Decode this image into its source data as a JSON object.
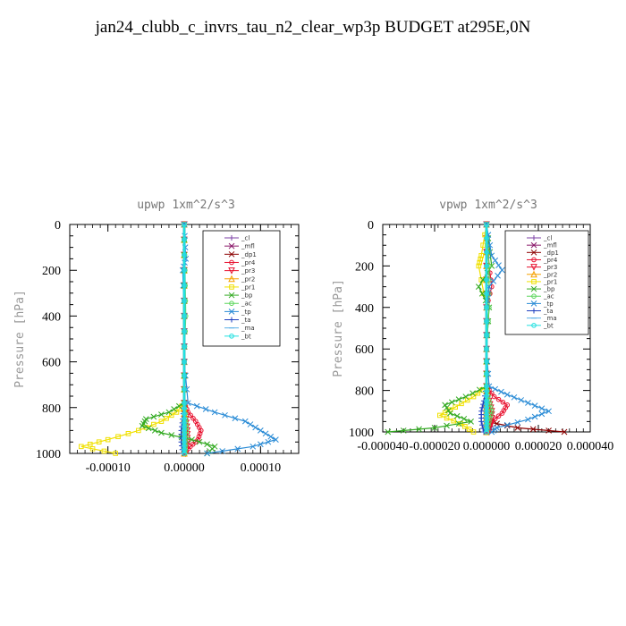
{
  "page_title": "jan24_clubb_c_invrs_tau_n2_clear_wp3p  BUDGET at295E,0N",
  "chart_data": [
    {
      "type": "line",
      "title": "upwp   1xm^2/s^3",
      "ylabel": "Pressure [hPa]",
      "xlabel": "",
      "xlim": [
        -0.00015,
        0.00015
      ],
      "ylim": [
        1000,
        0
      ],
      "x_ticks": [
        "-0.00010",
        "0.00000",
        "0.00010"
      ],
      "x_tick_values": [
        -0.0001,
        0,
        0.0001
      ],
      "y_ticks": [
        "0",
        "200",
        "400",
        "600",
        "800",
        "1000"
      ],
      "legend_position": "top-right",
      "series": [
        {
          "name": "_cl",
          "color": "#7b3fa6",
          "marker": "+",
          "pressure": [
            0,
            200,
            400,
            600,
            780,
            850,
            900,
            950,
            1000
          ],
          "values": [
            0,
            0,
            0,
            0,
            0,
            0,
            0,
            0,
            0
          ]
        },
        {
          "name": "_mfl",
          "color": "#8b1a6b",
          "marker": "x",
          "pressure": [
            0,
            200,
            400,
            600,
            780,
            850,
            900,
            950,
            1000
          ],
          "values": [
            0,
            0,
            0,
            0,
            0,
            0,
            0,
            0,
            0
          ]
        },
        {
          "name": "_dp1",
          "color": "#8b0000",
          "marker": "*",
          "pressure": [
            0,
            200,
            400,
            600,
            780,
            850,
            900,
            950,
            1000
          ],
          "values": [
            0,
            0,
            0,
            0,
            0,
            0,
            0,
            0,
            0
          ]
        },
        {
          "name": "_pr4",
          "color": "#e8102e",
          "marker": "o",
          "pressure": [
            0,
            200,
            400,
            600,
            780,
            820,
            860,
            900,
            940,
            970,
            1000
          ],
          "values": [
            0,
            0,
            0,
            0,
            0,
            5e-06,
            1.5e-05,
            2.2e-05,
            1.8e-05,
            8e-06,
            0
          ]
        },
        {
          "name": "_pr3",
          "color": "#e8102e",
          "marker": "v",
          "pressure": [
            0,
            200,
            400,
            600,
            780,
            850,
            900,
            950,
            1000
          ],
          "values": [
            0,
            0,
            0,
            0,
            0,
            2e-06,
            4e-06,
            4e-06,
            2e-06
          ]
        },
        {
          "name": "_pr2",
          "color": "#f5a000",
          "marker": "^",
          "pressure": [
            0,
            200,
            400,
            600,
            780,
            850,
            900,
            950,
            1000
          ],
          "values": [
            0,
            0,
            0,
            0,
            0,
            0,
            0,
            0,
            0
          ]
        },
        {
          "name": "_pr1",
          "color": "#f0e000",
          "marker": "s",
          "pressure": [
            0,
            200,
            400,
            600,
            780,
            820,
            860,
            900,
            940,
            970,
            1000
          ],
          "values": [
            0,
            0,
            0,
            0,
            0,
            -1e-05,
            -3e-05,
            -6e-05,
            -0.0001,
            -0.000135,
            -9e-05
          ]
        },
        {
          "name": "_bp",
          "color": "#33aa22",
          "marker": "x",
          "pressure": [
            0,
            200,
            400,
            600,
            780,
            820,
            850,
            880,
            910,
            940,
            970,
            1000
          ],
          "values": [
            0,
            0,
            0,
            0,
            0,
            -2e-05,
            -5e-05,
            -5.5e-05,
            -3e-05,
            1e-05,
            4e-05,
            3e-05
          ]
        },
        {
          "name": "_ac",
          "color": "#5cd65c",
          "marker": "o",
          "pressure": [
            0,
            200,
            400,
            600,
            780,
            850,
            900,
            950,
            1000
          ],
          "values": [
            0,
            1e-06,
            2e-06,
            0,
            0,
            2e-06,
            3e-06,
            2e-06,
            1e-06
          ]
        },
        {
          "name": "_tp",
          "color": "#2b8cd6",
          "marker": "x",
          "pressure": [
            0,
            150,
            200,
            400,
            600,
            780,
            820,
            860,
            900,
            940,
            970,
            1000
          ],
          "values": [
            0,
            2e-06,
            -2e-06,
            0,
            0,
            5e-06,
            4e-05,
            8e-05,
            0.0001,
            0.00012,
            9e-05,
            3e-05
          ]
        },
        {
          "name": "_ta",
          "color": "#1f3fbf",
          "marker": "+",
          "pressure": [
            0,
            200,
            400,
            600,
            780,
            850,
            900,
            950,
            1000
          ],
          "values": [
            0,
            0,
            0,
            0,
            0,
            -2e-06,
            -4e-06,
            -4e-06,
            -2e-06
          ]
        },
        {
          "name": "_ma",
          "color": "#5ab0e8",
          "marker": "-",
          "pressure": [
            0,
            200,
            400,
            600,
            780,
            850,
            900,
            950,
            1000
          ],
          "values": [
            0,
            0,
            0,
            0,
            0,
            0,
            0,
            0,
            0
          ]
        },
        {
          "name": "_bt",
          "color": "#22e0e0",
          "marker": "o",
          "pressure": [
            0,
            200,
            400,
            600,
            780,
            850,
            900,
            950,
            1000
          ],
          "values": [
            0,
            0,
            0,
            0,
            0,
            0,
            0,
            0,
            0
          ]
        }
      ]
    },
    {
      "type": "line",
      "title": "vpwp   1xm^2/s^3",
      "ylabel": "Pressure [hPa]",
      "xlabel": "",
      "xlim": [
        -4e-05,
        4e-05
      ],
      "ylim": [
        1000,
        0
      ],
      "x_ticks": [
        "-0.000040",
        "-0.000020",
        "0.000000",
        "0.000020",
        "0.000040"
      ],
      "x_tick_values": [
        -4e-05,
        -2e-05,
        0,
        2e-05,
        4e-05
      ],
      "y_ticks": [
        "0",
        "200",
        "400",
        "600",
        "800",
        "1000"
      ],
      "legend_position": "top-right",
      "series": [
        {
          "name": "_cl",
          "color": "#7b3fa6",
          "marker": "+",
          "pressure": [
            0,
            200,
            400,
            600,
            780,
            850,
            900,
            950,
            1000
          ],
          "values": [
            0,
            0,
            0,
            0,
            0,
            0,
            0,
            0,
            0
          ]
        },
        {
          "name": "_mfl",
          "color": "#8b1a6b",
          "marker": "x",
          "pressure": [
            0,
            200,
            400,
            600,
            780,
            850,
            900,
            950,
            1000
          ],
          "values": [
            0,
            0,
            0,
            0,
            0,
            0,
            0,
            0,
            0
          ]
        },
        {
          "name": "_dp1",
          "color": "#8b0000",
          "marker": "*",
          "pressure": [
            0,
            200,
            400,
            600,
            780,
            850,
            900,
            950,
            980,
            1000
          ],
          "values": [
            0,
            0,
            0,
            0,
            0,
            0,
            0,
            0,
            1.2e-05,
            3e-05
          ]
        },
        {
          "name": "_pr4",
          "color": "#e8102e",
          "marker": "o",
          "pressure": [
            0,
            200,
            300,
            400,
            600,
            780,
            830,
            870,
            910,
            950,
            1000
          ],
          "values": [
            0,
            1e-06,
            2e-06,
            0,
            0,
            0,
            3e-06,
            8e-06,
            6e-06,
            2e-06,
            0
          ]
        },
        {
          "name": "_pr3",
          "color": "#e8102e",
          "marker": "v",
          "pressure": [
            0,
            200,
            400,
            600,
            780,
            850,
            900,
            950,
            1000
          ],
          "values": [
            0,
            0,
            0,
            0,
            0,
            1e-06,
            2e-06,
            2e-06,
            1e-06
          ]
        },
        {
          "name": "_pr2",
          "color": "#f5a000",
          "marker": "^",
          "pressure": [
            0,
            200,
            400,
            600,
            780,
            850,
            900,
            950,
            1000
          ],
          "values": [
            0,
            0,
            0,
            0,
            0,
            0,
            0,
            0,
            0
          ]
        },
        {
          "name": "_pr1",
          "color": "#f0e000",
          "marker": "s",
          "pressure": [
            0,
            150,
            200,
            400,
            600,
            780,
            830,
            880,
            920,
            960,
            1000
          ],
          "values": [
            0,
            -2e-06,
            -3e-06,
            0,
            0,
            0,
            -5e-06,
            -1.2e-05,
            -1.8e-05,
            -1e-05,
            -5e-06
          ]
        },
        {
          "name": "_bp",
          "color": "#33aa22",
          "marker": "x",
          "pressure": [
            0,
            200,
            300,
            400,
            600,
            780,
            830,
            870,
            910,
            950,
            980,
            1000
          ],
          "values": [
            0,
            2e-06,
            -3e-06,
            1e-06,
            0,
            0,
            -8e-06,
            -1.6e-05,
            -1.4e-05,
            -6e-06,
            -2e-05,
            -3.8e-05
          ]
        },
        {
          "name": "_ac",
          "color": "#5cd65c",
          "marker": "o",
          "pressure": [
            0,
            200,
            400,
            600,
            780,
            850,
            900,
            950,
            1000
          ],
          "values": [
            0,
            1e-06,
            1e-06,
            0,
            0,
            1e-06,
            2e-06,
            1e-06,
            0
          ]
        },
        {
          "name": "_tp",
          "color": "#2b8cd6",
          "marker": "x",
          "pressure": [
            0,
            150,
            220,
            300,
            400,
            600,
            780,
            820,
            860,
            900,
            940,
            980,
            1000
          ],
          "values": [
            0,
            2e-06,
            6e-06,
            1e-06,
            0,
            0,
            1e-06,
            8e-06,
            1.6e-05,
            2.4e-05,
            1.6e-05,
            4e-06,
            2e-06
          ]
        },
        {
          "name": "_ta",
          "color": "#1f3fbf",
          "marker": "+",
          "pressure": [
            0,
            200,
            400,
            600,
            780,
            850,
            900,
            950,
            1000
          ],
          "values": [
            0,
            0,
            0,
            0,
            0,
            -1e-06,
            -2e-06,
            -2e-06,
            -1e-06
          ]
        },
        {
          "name": "_ma",
          "color": "#5ab0e8",
          "marker": "-",
          "pressure": [
            0,
            200,
            400,
            600,
            780,
            850,
            900,
            950,
            1000
          ],
          "values": [
            0,
            0,
            0,
            0,
            0,
            0,
            0,
            0,
            0
          ]
        },
        {
          "name": "_bt",
          "color": "#22e0e0",
          "marker": "o",
          "pressure": [
            0,
            200,
            400,
            600,
            780,
            850,
            900,
            950,
            1000
          ],
          "values": [
            0,
            0,
            0,
            0,
            0,
            0,
            0,
            0,
            0
          ]
        }
      ]
    }
  ]
}
